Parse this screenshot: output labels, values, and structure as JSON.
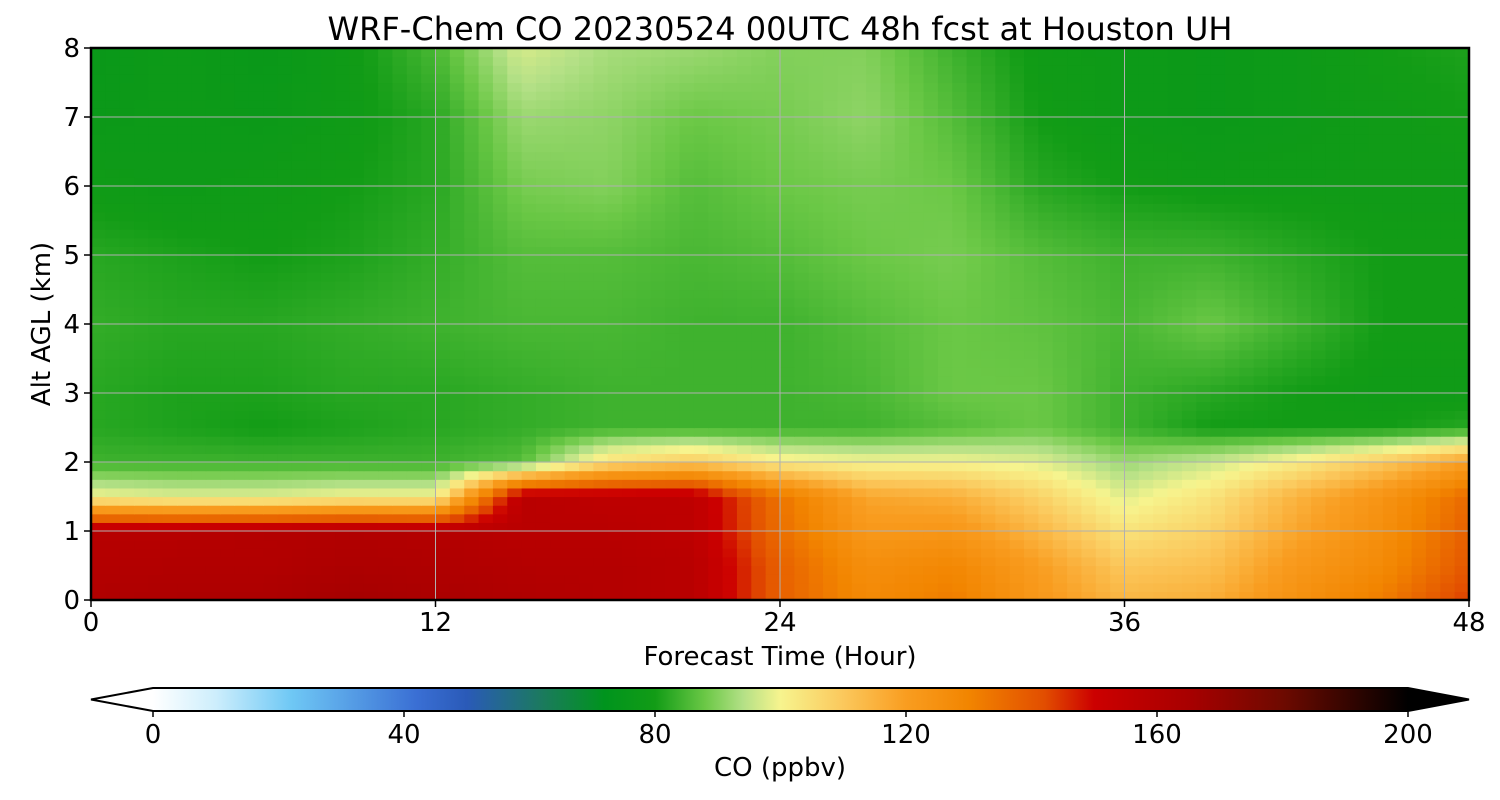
{
  "chart_data": {
    "type": "heatmap",
    "title": "WRF-Chem CO  20230524 00UTC 48h fcst at Houston UH",
    "xlabel": "Forecast Time (Hour)",
    "ylabel": "Alt AGL (km)",
    "xlim": [
      0,
      48
    ],
    "ylim": [
      0,
      8
    ],
    "x_ticks": [
      0,
      12,
      24,
      36,
      48
    ],
    "y_ticks": [
      0,
      1,
      2,
      3,
      4,
      5,
      6,
      7,
      8
    ],
    "grid": true,
    "x_hours": [
      0,
      3,
      6,
      9,
      12,
      15,
      18,
      21,
      24,
      27,
      30,
      33,
      36,
      39,
      42,
      45,
      48
    ],
    "z_levels_km": [
      0.0,
      0.5,
      1.0,
      1.5,
      2.0,
      2.5,
      3.0,
      4.0,
      5.0,
      6.0,
      7.0,
      8.0
    ],
    "values_ppbv": [
      [
        162,
        163,
        163,
        166,
        164,
        162,
        160,
        158,
        138,
        128,
        132,
        122,
        114,
        116,
        125,
        132,
        144
      ],
      [
        160,
        161,
        161,
        163,
        162,
        160,
        160,
        158,
        138,
        126,
        129,
        120,
        110,
        112,
        122,
        128,
        140
      ],
      [
        159,
        159,
        160,
        161,
        160,
        158,
        158,
        156,
        135,
        122,
        123,
        114,
        104,
        108,
        118,
        126,
        138
      ],
      [
        100,
        98,
        98,
        100,
        100,
        158,
        156,
        156,
        134,
        118,
        116,
        108,
        98,
        104,
        115,
        124,
        136
      ],
      [
        84,
        84,
        84,
        84,
        84,
        86,
        105,
        110,
        102,
        100,
        100,
        98,
        92,
        96,
        102,
        110,
        120
      ],
      [
        82,
        81,
        80,
        81,
        82,
        83,
        84,
        84,
        84,
        84,
        86,
        88,
        84,
        80,
        80,
        80,
        82
      ],
      [
        82,
        81,
        81,
        82,
        82,
        83,
        84,
        84,
        84,
        85,
        88,
        88,
        84,
        82,
        80,
        79,
        79
      ],
      [
        83,
        82,
        82,
        83,
        84,
        85,
        85,
        84,
        84,
        86,
        88,
        87,
        85,
        88,
        84,
        80,
        80
      ],
      [
        82,
        81,
        80,
        81,
        83,
        86,
        86,
        85,
        86,
        88,
        89,
        86,
        84,
        84,
        82,
        80,
        80
      ],
      [
        79,
        78,
        79,
        80,
        82,
        89,
        90,
        86,
        88,
        89,
        88,
        82,
        80,
        79,
        79,
        79,
        79
      ],
      [
        77,
        78,
        77,
        79,
        82,
        92,
        91,
        88,
        89,
        91,
        86,
        80,
        78,
        77,
        78,
        79,
        80
      ],
      [
        76,
        78,
        76,
        79,
        85,
        97,
        93,
        92,
        90,
        90,
        84,
        79,
        78,
        77,
        78,
        80,
        81
      ]
    ],
    "colorbar": {
      "label": "CO  (ppbv)",
      "min": 0,
      "max": 200,
      "ticks": [
        0,
        40,
        80,
        120,
        160,
        200
      ],
      "extend": "both",
      "color_stops": [
        [
          0,
          "#ffffff"
        ],
        [
          10,
          "#cdeefc"
        ],
        [
          22,
          "#6fc8f5"
        ],
        [
          42,
          "#3a6fd4"
        ],
        [
          50,
          "#2a5ab8"
        ],
        [
          62,
          "#1b7a5e"
        ],
        [
          72,
          "#00941d"
        ],
        [
          80,
          "#129c16"
        ],
        [
          88,
          "#6bc846"
        ],
        [
          94,
          "#b3e086"
        ],
        [
          100,
          "#f7f48e"
        ],
        [
          110,
          "#fbc85c"
        ],
        [
          120,
          "#f99d20"
        ],
        [
          130,
          "#f28500"
        ],
        [
          142,
          "#e24e00"
        ],
        [
          150,
          "#cc0000"
        ],
        [
          165,
          "#a80000"
        ],
        [
          180,
          "#6e0a00"
        ],
        [
          200,
          "#000000"
        ]
      ]
    }
  }
}
